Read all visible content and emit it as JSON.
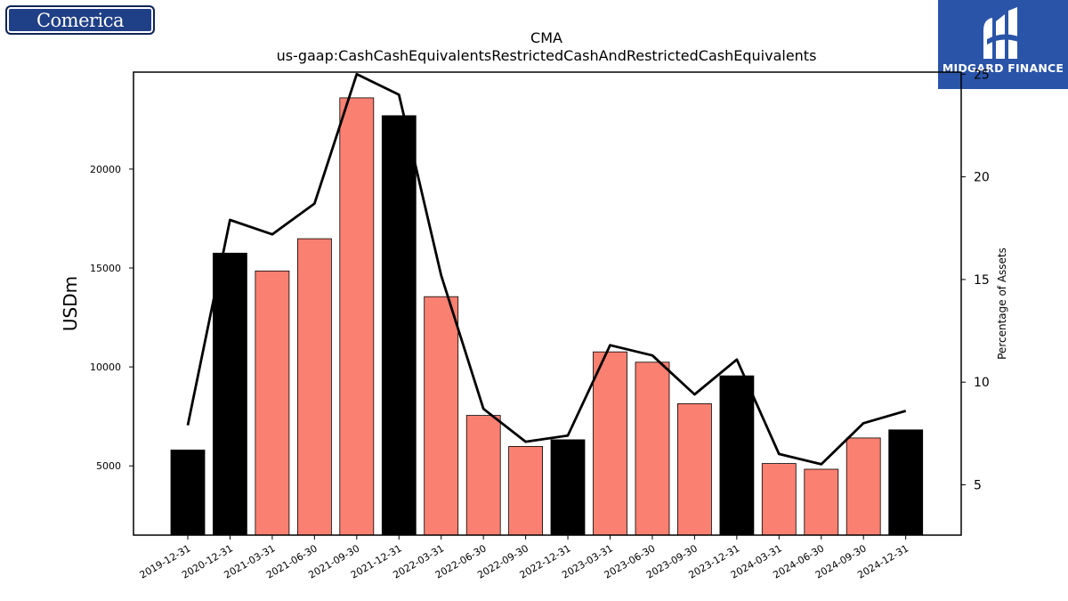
{
  "logos": {
    "left": "Comerica",
    "right": "MIDGARD FINANCE"
  },
  "chart_data": {
    "type": "bar",
    "title": "CMA",
    "subtitle": "us-gaap:CashCashEquivalentsRestrictedCashAndRestrictedCashEquivalents",
    "ylabel": "USDm",
    "ylabel_right": "Percentage of Assets",
    "categories": [
      "2019-12-31",
      "2020-12-31",
      "2021-03-31",
      "2021-06-30",
      "2021-09-30",
      "2021-12-31",
      "2022-03-31",
      "2022-06-30",
      "2022-09-30",
      "2022-12-31",
      "2023-03-31",
      "2023-06-30",
      "2023-09-30",
      "2023-12-31",
      "2024-03-31",
      "2024-06-30",
      "2024-09-30",
      "2024-12-31"
    ],
    "values": [
      5800,
      15750,
      14850,
      16480,
      23600,
      22700,
      13550,
      7550,
      5980,
      6320,
      10760,
      10240,
      8140,
      9550,
      5120,
      4830,
      6410,
      6820
    ],
    "bar_colors": [
      "#000000",
      "#000000",
      "#fa8072",
      "#fa8072",
      "#fa8072",
      "#000000",
      "#fa8072",
      "#fa8072",
      "#fa8072",
      "#000000",
      "#fa8072",
      "#fa8072",
      "#fa8072",
      "#000000",
      "#fa8072",
      "#fa8072",
      "#fa8072",
      "#000000"
    ],
    "line_series": {
      "name": "Percentage of Assets",
      "values": [
        7.9,
        17.9,
        17.2,
        18.7,
        25.0,
        24.0,
        15.2,
        8.7,
        7.1,
        7.4,
        11.8,
        11.3,
        9.4,
        11.1,
        6.5,
        6.0,
        8.0,
        8.6
      ]
    },
    "ylim": [
      1500,
      24900
    ],
    "yticks": [
      5000,
      10000,
      15000,
      20000
    ],
    "ylim_right": [
      2.55,
      25.1
    ],
    "yticks_right": [
      5,
      10,
      15,
      20,
      25
    ],
    "grid": false,
    "legend": "none"
  }
}
